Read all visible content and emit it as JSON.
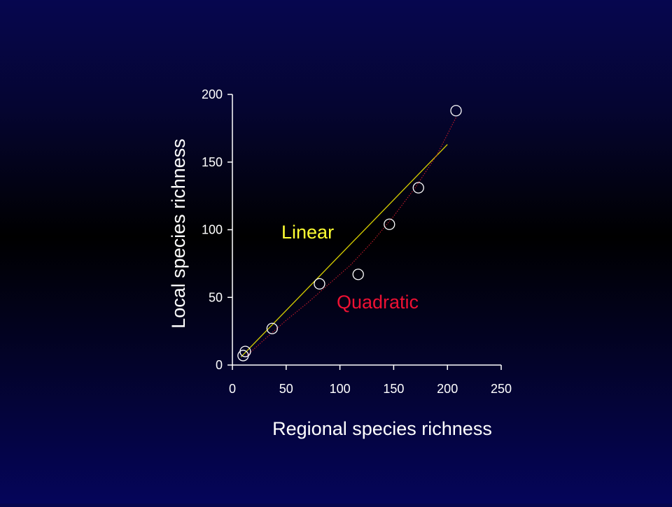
{
  "chart_data": {
    "type": "scatter",
    "xlabel": "Regional species richness",
    "ylabel": "Local species richness",
    "xlim": [
      0,
      250
    ],
    "ylim": [
      0,
      200
    ],
    "x_ticks": [
      0,
      50,
      100,
      150,
      200,
      250
    ],
    "y_ticks": [
      0,
      50,
      100,
      150,
      200
    ],
    "grid": false,
    "points": {
      "x": [
        10,
        12,
        37,
        81,
        117,
        146,
        173,
        208
      ],
      "y": [
        7,
        10,
        27,
        60,
        67,
        104,
        131,
        188
      ]
    },
    "fits": [
      {
        "name": "Linear",
        "color": "#ffff33",
        "line_color": "#d8d000",
        "x": [
          8,
          200
        ],
        "y": [
          6,
          163
        ]
      },
      {
        "name": "Quadratic",
        "color": "#ee1133",
        "line_color": "#b81a2a",
        "style": "dotted",
        "x": [
          12,
          30,
          50,
          70,
          90,
          110,
          130,
          150,
          170,
          190,
          208
        ],
        "y": [
          6,
          19,
          33,
          46,
          60,
          74,
          91,
          110,
          131,
          155,
          183
        ]
      }
    ],
    "colors": {
      "axis": "#ffffff",
      "marker_stroke": "#ffffff",
      "text": "#ffffff"
    }
  }
}
